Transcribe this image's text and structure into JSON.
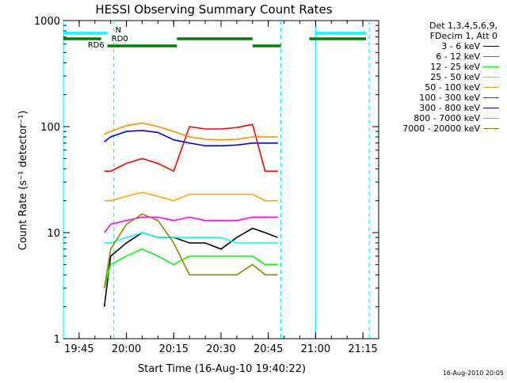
{
  "chart_data": {
    "type": "line",
    "title": "HESSI Observing Summary Count Rates",
    "xlabel": "Start Time (16-Aug-10 19:40:22)",
    "ylabel": "Count Rate (s⁻¹ detector⁻¹)",
    "y_scale": "log",
    "ylim": [
      1,
      1000
    ],
    "xlim": [
      "19:40",
      "21:20"
    ],
    "x_ticks": [
      "19:45",
      "20:00",
      "20:15",
      "20:30",
      "20:45",
      "21:00",
      "21:15"
    ],
    "y_ticks": [
      "1",
      "10",
      "100",
      "1000"
    ],
    "grid": false,
    "legend_position": "right",
    "legend_header": [
      "Det 1,3,4,5,6,9,",
      "FDecim 1, Att 0"
    ],
    "series": [
      {
        "name": "3 - 6 keV",
        "color": "#000000",
        "points": [
          [
            "19:53",
            2
          ],
          [
            "19:55",
            6
          ],
          [
            "20:00",
            8
          ],
          [
            "20:05",
            10
          ],
          [
            "20:10",
            9
          ],
          [
            "20:15",
            9
          ],
          [
            "20:20",
            8
          ],
          [
            "20:25",
            8
          ],
          [
            "20:30",
            7
          ],
          [
            "20:35",
            9
          ],
          [
            "20:40",
            11
          ],
          [
            "20:44",
            10
          ],
          [
            "20:48",
            9
          ]
        ]
      },
      {
        "name": "6 - 12 keV",
        "color": "#ff00ff",
        "points": [
          [
            "19:53",
            10
          ],
          [
            "19:55",
            12
          ],
          [
            "20:00",
            13
          ],
          [
            "20:05",
            14
          ],
          [
            "20:10",
            14
          ],
          [
            "20:15",
            13
          ],
          [
            "20:20",
            14
          ],
          [
            "20:25",
            13
          ],
          [
            "20:30",
            13
          ],
          [
            "20:35",
            13
          ],
          [
            "20:40",
            14
          ],
          [
            "20:44",
            14
          ],
          [
            "20:48",
            14
          ]
        ]
      },
      {
        "name": "12 - 25 keV",
        "color": "#00ff00",
        "points": [
          [
            "19:53",
            3
          ],
          [
            "19:55",
            5
          ],
          [
            "20:00",
            6
          ],
          [
            "20:05",
            7
          ],
          [
            "20:10",
            6
          ],
          [
            "20:15",
            5
          ],
          [
            "20:20",
            6
          ],
          [
            "20:25",
            6
          ],
          [
            "20:30",
            6
          ],
          [
            "20:35",
            6
          ],
          [
            "20:40",
            6
          ],
          [
            "20:44",
            5
          ],
          [
            "20:48",
            5
          ]
        ]
      },
      {
        "name": "25 - 50 keV",
        "color": "#00ffff",
        "points": [
          [
            "19:53",
            8
          ],
          [
            "19:55",
            8
          ],
          [
            "20:00",
            9
          ],
          [
            "20:05",
            10
          ],
          [
            "20:10",
            9
          ],
          [
            "20:15",
            9
          ],
          [
            "20:20",
            9
          ],
          [
            "20:25",
            9
          ],
          [
            "20:30",
            9
          ],
          [
            "20:35",
            8
          ],
          [
            "20:40",
            8
          ],
          [
            "20:44",
            8
          ],
          [
            "20:48",
            8
          ]
        ]
      },
      {
        "name": "50 - 100 keV",
        "color": "#ffa500",
        "points": [
          [
            "19:53",
            20
          ],
          [
            "19:55",
            20
          ],
          [
            "20:00",
            22
          ],
          [
            "20:05",
            24
          ],
          [
            "20:10",
            22
          ],
          [
            "20:15",
            20
          ],
          [
            "20:20",
            23
          ],
          [
            "20:25",
            23
          ],
          [
            "20:30",
            23
          ],
          [
            "20:35",
            23
          ],
          [
            "20:40",
            23
          ],
          [
            "20:44",
            20
          ],
          [
            "20:48",
            20
          ]
        ]
      },
      {
        "name": "100 - 300 keV",
        "color": "#ff0000",
        "points": [
          [
            "19:53",
            38
          ],
          [
            "19:55",
            38
          ],
          [
            "20:00",
            45
          ],
          [
            "20:05",
            50
          ],
          [
            "20:10",
            45
          ],
          [
            "20:15",
            38
          ],
          [
            "20:20",
            100
          ],
          [
            "20:25",
            95
          ],
          [
            "20:30",
            95
          ],
          [
            "20:35",
            98
          ],
          [
            "20:40",
            105
          ],
          [
            "20:44",
            38
          ],
          [
            "20:48",
            38
          ]
        ]
      },
      {
        "name": "300 - 800 keV",
        "color": "#0000ff",
        "points": [
          [
            "19:53",
            72
          ],
          [
            "19:55",
            80
          ],
          [
            "20:00",
            90
          ],
          [
            "20:05",
            92
          ],
          [
            "20:10",
            88
          ],
          [
            "20:15",
            75
          ],
          [
            "20:20",
            70
          ],
          [
            "20:25",
            66
          ],
          [
            "20:30",
            66
          ],
          [
            "20:35",
            67
          ],
          [
            "20:40",
            70
          ],
          [
            "20:44",
            70
          ],
          [
            "20:48",
            70
          ]
        ]
      },
      {
        "name": "800 - 7000 keV",
        "color": "#ff8c00",
        "points": [
          [
            "19:53",
            85
          ],
          [
            "19:55",
            90
          ],
          [
            "20:00",
            102
          ],
          [
            "20:05",
            108
          ],
          [
            "20:10",
            100
          ],
          [
            "20:15",
            90
          ],
          [
            "20:20",
            80
          ],
          [
            "20:25",
            76
          ],
          [
            "20:30",
            75
          ],
          [
            "20:35",
            76
          ],
          [
            "20:40",
            80
          ],
          [
            "20:44",
            80
          ],
          [
            "20:48",
            80
          ]
        ]
      },
      {
        "name": "7000 - 20000 keV",
        "color": "#8b8b00",
        "points": [
          [
            "19:53",
            3
          ],
          [
            "19:55",
            7
          ],
          [
            "20:00",
            12
          ],
          [
            "20:05",
            15
          ],
          [
            "20:10",
            13
          ],
          [
            "20:15",
            8
          ],
          [
            "20:20",
            4
          ],
          [
            "20:25",
            4
          ],
          [
            "20:30",
            4
          ],
          [
            "20:35",
            4
          ],
          [
            "20:40",
            5
          ],
          [
            "20:44",
            4
          ],
          [
            "20:48",
            4
          ]
        ]
      }
    ],
    "flag_bars": [
      {
        "label": "N",
        "color": "#00ffff",
        "segments": [
          [
            "19:40",
            "19:54"
          ],
          [
            "21:00",
            "21:16"
          ]
        ]
      },
      {
        "label": "RD0",
        "color": "#008000",
        "segments": [
          [
            "19:40",
            "19:52"
          ],
          [
            "20:16",
            "20:40"
          ],
          [
            "20:58",
            "21:16"
          ]
        ]
      },
      {
        "label": "RD6",
        "color": "#008000",
        "segments": [
          [
            "19:54",
            "20:16"
          ],
          [
            "20:40",
            "20:49"
          ]
        ]
      }
    ],
    "vertical_markers": [
      {
        "time": "19:40",
        "style": "solid",
        "color": "#00ffff"
      },
      {
        "time": "19:56",
        "style": "dashed",
        "color": "#00ffff"
      },
      {
        "time": "20:49",
        "style": "dashed",
        "color": "#00ffff"
      },
      {
        "time": "21:00",
        "style": "solid",
        "color": "#00ffff"
      },
      {
        "time": "21:17",
        "style": "dashed",
        "color": "#00ffff"
      }
    ]
  },
  "footer": {
    "stamp": "16-Aug-2010 20:05"
  }
}
